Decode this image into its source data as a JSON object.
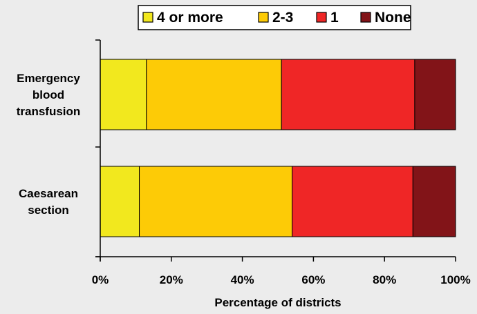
{
  "chart_data": {
    "type": "bar",
    "orientation": "horizontal",
    "stacked": true,
    "categories": [
      "Emergency blood transfusion",
      "Caesarean section"
    ],
    "category_label_lines": [
      [
        "Emergency",
        "blood",
        "transfusion"
      ],
      [
        "Caesarean",
        "section"
      ]
    ],
    "series": [
      {
        "name": "4 or more",
        "color": "#f2e81e",
        "values": [
          13,
          11
        ]
      },
      {
        "name": "2-3",
        "color": "#fdcb06",
        "values": [
          38,
          43
        ]
      },
      {
        "name": "1",
        "color": "#ef2626",
        "values": [
          37.5,
          34
        ]
      },
      {
        "name": "None",
        "color": "#821418",
        "values": [
          11.5,
          12
        ]
      }
    ],
    "x_ticks": [
      "0%",
      "20%",
      "40%",
      "60%",
      "80%",
      "100%"
    ],
    "xlim": [
      0,
      100
    ],
    "xlabel": "Percentage of districts",
    "ylabel": "",
    "title": "",
    "legend_position": "top",
    "grid": false
  }
}
